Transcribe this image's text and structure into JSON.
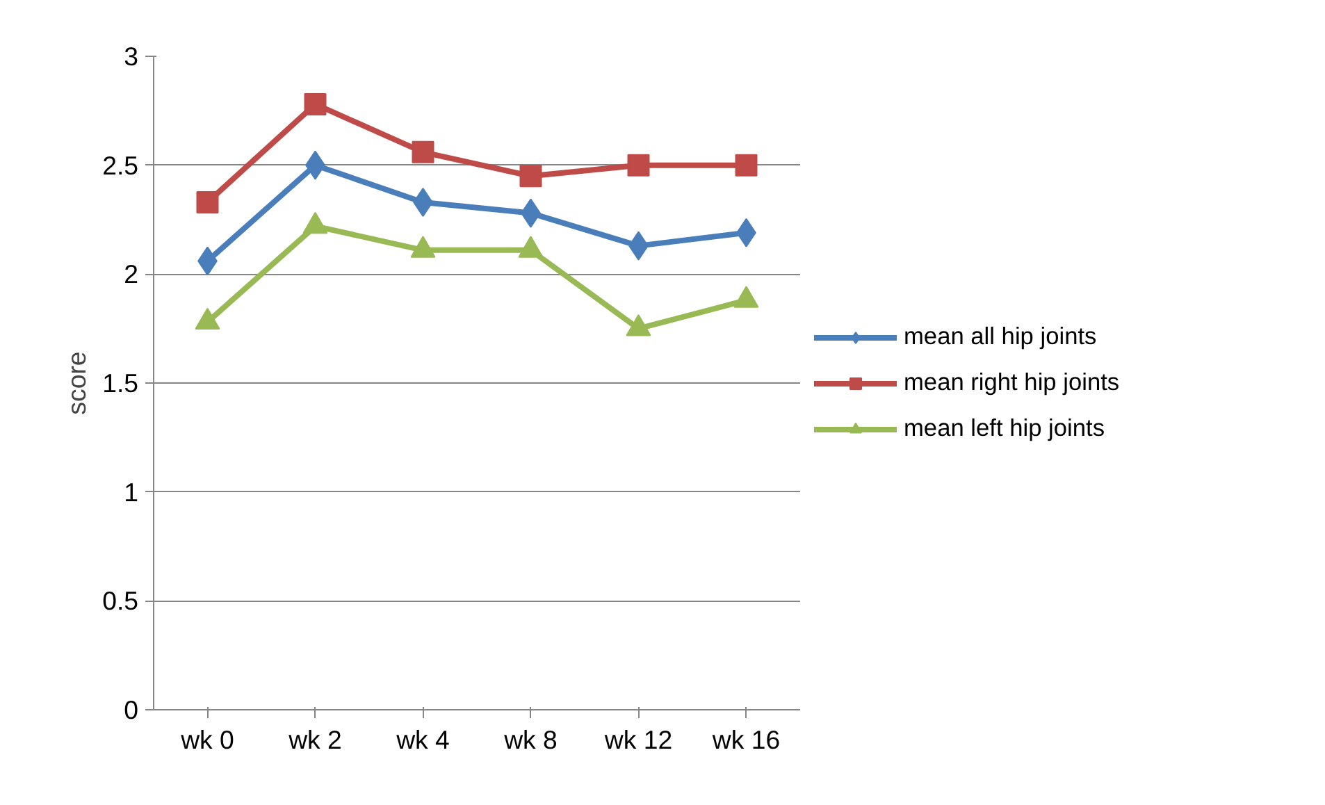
{
  "chart_data": {
    "type": "line",
    "ylabel": "score",
    "categories": [
      "wk 0",
      "wk 2",
      "wk 4",
      "wk 8",
      "wk 12",
      "wk 16"
    ],
    "ylim": [
      0,
      3
    ],
    "yticks": [
      0,
      0.5,
      1,
      1.5,
      2,
      2.5,
      3
    ],
    "grid": "y",
    "legend": "right",
    "series": [
      {
        "name": "mean all hip joints",
        "color": "#4a7ebb",
        "marker": "diamond",
        "values": [
          2.06,
          2.5,
          2.33,
          2.28,
          2.13,
          2.19
        ]
      },
      {
        "name": "mean right hip joints",
        "color": "#be4b48",
        "marker": "square",
        "values": [
          2.33,
          2.78,
          2.56,
          2.45,
          2.5,
          2.5
        ]
      },
      {
        "name": "mean left hip joints",
        "color": "#98b954",
        "marker": "triangle",
        "values": [
          1.78,
          2.22,
          2.11,
          2.11,
          1.75,
          1.88
        ]
      }
    ]
  }
}
